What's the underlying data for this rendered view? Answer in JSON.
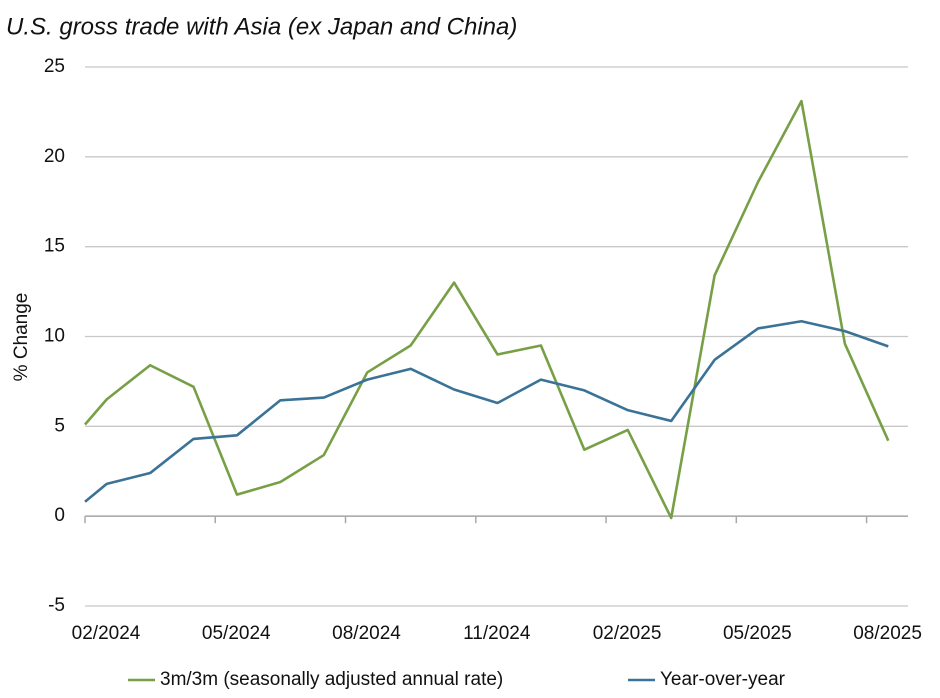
{
  "chart_data": {
    "type": "line",
    "title": "U.S. gross trade with Asia (ex Japan and China)",
    "y_label": "% Change",
    "x": [
      0,
      0.5,
      1.5,
      2.5,
      3.5,
      4.5,
      5.5,
      6.5,
      7.5,
      8.5,
      9.5,
      10.5,
      11.5,
      12.5,
      13.5,
      14.5,
      15.5,
      16.5,
      17.5,
      18.5
    ],
    "xlim": [
      0,
      19
    ],
    "xticks": [
      {
        "value": 0,
        "label": "02/2024"
      },
      {
        "value": 3,
        "label": "05/2024"
      },
      {
        "value": 6,
        "label": "08/2024"
      },
      {
        "value": 9,
        "label": "11/2024"
      },
      {
        "value": 12,
        "label": "02/2025"
      },
      {
        "value": 15,
        "label": "05/2025"
      },
      {
        "value": 18,
        "label": "08/2025"
      }
    ],
    "ylim": [
      -5,
      25
    ],
    "yticks": [
      -5,
      0,
      5,
      10,
      15,
      20,
      25
    ],
    "grid": true,
    "legend": "bottom",
    "series": [
      {
        "name": "3m/3m (seasonally adjusted annual rate)",
        "color": "#77a046",
        "values": [
          5.1,
          6.5,
          8.4,
          7.2,
          1.2,
          1.9,
          3.4,
          8.0,
          9.5,
          13.0,
          9.0,
          9.5,
          3.7,
          4.8,
          -0.1,
          13.4,
          18.6,
          23.1,
          9.6,
          4.2
        ]
      },
      {
        "name": "Year-over-year",
        "color": "#3a7397",
        "values": [
          0.8,
          1.8,
          2.4,
          4.3,
          4.5,
          6.45,
          6.6,
          7.6,
          8.2,
          7.05,
          6.3,
          7.6,
          7.0,
          5.9,
          5.3,
          8.7,
          10.45,
          10.85,
          10.3,
          9.45
        ]
      }
    ]
  }
}
